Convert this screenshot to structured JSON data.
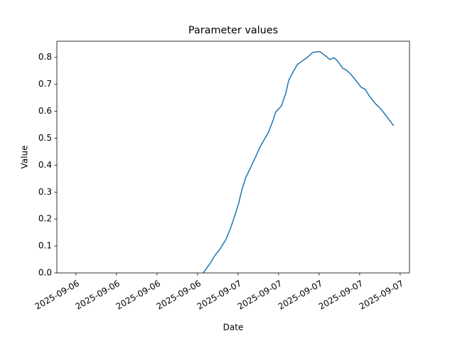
{
  "chart_data": {
    "type": "line",
    "title": "Parameter values",
    "x_label": "Date",
    "y_label": "Value",
    "x": [
      3.14,
      3.32,
      3.42,
      3.56,
      3.7,
      3.81,
      3.91,
      4.02,
      4.09,
      4.19,
      4.3,
      4.44,
      4.54,
      4.65,
      4.75,
      4.86,
      4.93,
      5.07,
      5.18,
      5.25,
      5.35,
      5.46,
      5.56,
      5.7,
      5.84,
      5.95,
      6.02,
      6.09,
      6.19,
      6.26,
      6.37,
      6.47,
      6.58,
      6.68,
      6.79,
      6.93,
      7.04,
      7.14,
      7.25,
      7.39,
      7.53,
      7.67,
      7.84
    ],
    "series": [
      {
        "name": "Value",
        "color": "#1f77b4",
        "values": [
          0,
          0.037,
          0.063,
          0.09,
          0.124,
          0.164,
          0.208,
          0.261,
          0.306,
          0.354,
          0.388,
          0.433,
          0.467,
          0.496,
          0.522,
          0.565,
          0.597,
          0.62,
          0.668,
          0.715,
          0.744,
          0.773,
          0.784,
          0.799,
          0.818,
          0.821,
          0.821,
          0.813,
          0.802,
          0.792,
          0.799,
          0.784,
          0.76,
          0.752,
          0.736,
          0.71,
          0.689,
          0.681,
          0.654,
          0.628,
          0.607,
          0.58,
          0.546
        ]
      }
    ],
    "xlim": [
      -0.47,
      8.23
    ],
    "ylim": [
      0,
      0.86
    ],
    "xticks": [
      {
        "value": 0,
        "label": "2025-09-06"
      },
      {
        "value": 1,
        "label": "2025-09-06"
      },
      {
        "value": 2,
        "label": "2025-09-06"
      },
      {
        "value": 3,
        "label": "2025-09-06"
      },
      {
        "value": 4,
        "label": "2025-09-07"
      },
      {
        "value": 5,
        "label": "2025-09-07"
      },
      {
        "value": 6,
        "label": "2025-09-07"
      },
      {
        "value": 7,
        "label": "2025-09-07"
      },
      {
        "value": 8,
        "label": "2025-09-07"
      }
    ],
    "yticks": [
      {
        "value": 0,
        "label": "0.0"
      },
      0.1,
      0.2,
      0.3,
      0.4,
      0.5,
      0.6,
      0.7,
      0.8
    ]
  }
}
